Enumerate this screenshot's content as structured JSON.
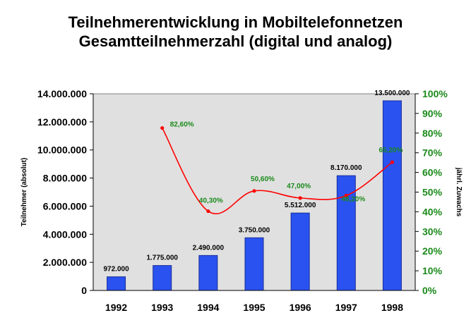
{
  "chart_data": {
    "type": "bar",
    "title": "Teilnehmerentwicklung in Mobiltelefonnetzen",
    "subtitle": "Gesamtteilnehmerzahl (digital und analog)",
    "categories": [
      "1992",
      "1993",
      "1994",
      "1995",
      "1996",
      "1997",
      "1998"
    ],
    "series": [
      {
        "type": "bar",
        "axis": "left",
        "values": [
          972000,
          1775000,
          2490000,
          3750000,
          5512000,
          8170000,
          13500000
        ],
        "labels": [
          "972.000",
          "1.775.000",
          "2.490.000",
          "3.750.000",
          "5.512.000",
          "8.170.000",
          "13.500.000"
        ],
        "color": "#2a52f0"
      },
      {
        "type": "line",
        "axis": "right",
        "values": [
          null,
          82.6,
          40.3,
          50.6,
          47.0,
          48.2,
          65.2
        ],
        "labels": [
          "",
          "82,60%",
          "40,30%",
          "50,60%",
          "47,00%",
          "48,20%",
          "65,20%"
        ],
        "color": "#ff0000",
        "label_color": "#1a8a1a"
      }
    ],
    "ylabel": "Teilnehmer (absolut)",
    "ylabel_right": "jährl. Zuwachs",
    "ylim": [
      0,
      14000000
    ],
    "yticks": [
      "0",
      "2.000.000",
      "4.000.000",
      "6.000.000",
      "8.000.000",
      "10.000.000",
      "12.000.000",
      "14.000.000"
    ],
    "ylim_right": [
      0,
      100
    ],
    "yticks_right": [
      "0%",
      "10%",
      "20%",
      "30%",
      "40%",
      "50%",
      "60%",
      "70%",
      "80%",
      "90%",
      "100%"
    ],
    "right_axis_color": "#1a8a1a",
    "plot_background": "#e0e0e0",
    "grid": false,
    "legend": "none"
  }
}
